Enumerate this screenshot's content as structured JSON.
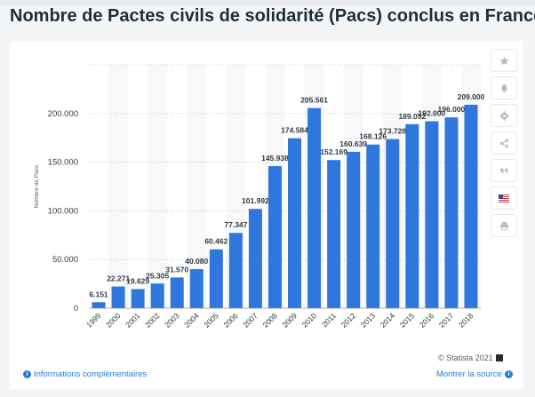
{
  "page": {
    "title": "Nombre de Pactes civils de solidarité (Pacs) conclus en France"
  },
  "footer": {
    "copyright": "© Statista 2021",
    "more_info": "Informations complémentaires",
    "show_source": "Montrer la source"
  },
  "toolbar": {
    "icons": [
      "star-icon",
      "bell-icon",
      "gear-icon",
      "share-icon",
      "quote-icon",
      "flag-icon",
      "print-icon"
    ]
  },
  "colors": {
    "bar": "#2f76dd",
    "link": "#2a7bd5"
  },
  "chart_data": {
    "type": "bar",
    "title": "",
    "xlabel": "",
    "ylabel": "Nombre de Pacs",
    "categories": [
      "1999",
      "2000",
      "2001",
      "2002",
      "2003",
      "2004",
      "2005",
      "2006",
      "2007",
      "2008",
      "2009",
      "2010",
      "2011",
      "2012",
      "2013",
      "2014",
      "2015",
      "2016",
      "2017",
      "2018"
    ],
    "values": [
      6151,
      22271,
      19629,
      25305,
      31570,
      40080,
      60462,
      77347,
      101992,
      145938,
      174584,
      205561,
      152169,
      160639,
      168126,
      173728,
      189052,
      192000,
      196000,
      209000
    ],
    "value_labels": [
      "6.151",
      "22.271",
      "19.629",
      "25.305",
      "31.570",
      "40.080",
      "60.462",
      "77.347",
      "101.992",
      "145.938",
      "174.584",
      "205.561",
      "152.169",
      "160.639",
      "168.126",
      "173.728",
      "189.052",
      "192.000",
      "196.000",
      "209.000"
    ],
    "yticks": [
      0,
      50000,
      100000,
      150000,
      200000
    ],
    "ytick_labels": [
      "0",
      "50.000",
      "100.000",
      "150.000",
      "200.000"
    ],
    "ylim": [
      0,
      250000
    ],
    "grid": true
  }
}
